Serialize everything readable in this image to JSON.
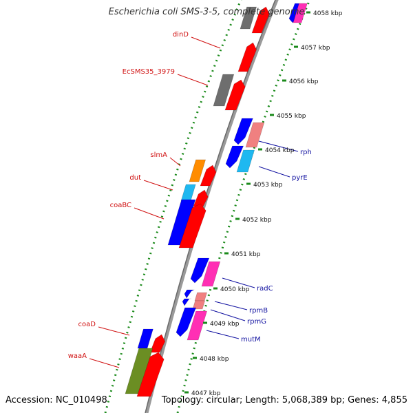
{
  "title": "Escherichia coli SMS-3-5, complete genome",
  "footer": {
    "accession": "Accession: NC_010498",
    "summary": "Topology: circular; Length: 5,068,389 bp; Genes: 4,855"
  },
  "colors": {
    "red": "#ff0000",
    "gray": "#6e6e6e",
    "blue": "#0000ff",
    "cyan": "#1fb8f0",
    "orange": "#ff8c00",
    "pink": "#ff2fb4",
    "salmon": "#f08080",
    "olive": "#6b8e23",
    "tick_green": "#1a8a1a",
    "forward_label": "#d01010",
    "reverse_label": "#1010a0"
  },
  "axis_ticks": [
    {
      "label": "4058 kbp",
      "kbp": 4058
    },
    {
      "label": "4057 kbp",
      "kbp": 4057
    },
    {
      "label": "4056 kbp",
      "kbp": 4056
    },
    {
      "label": "4055 kbp",
      "kbp": 4055
    },
    {
      "label": "4054 kbp",
      "kbp": 4054
    },
    {
      "label": "4053 kbp",
      "kbp": 4053
    },
    {
      "label": "4052 kbp",
      "kbp": 4052
    },
    {
      "label": "4051 kbp",
      "kbp": 4051
    },
    {
      "label": "4050 kbp",
      "kbp": 4050
    },
    {
      "label": "4049 kbp",
      "kbp": 4049
    },
    {
      "label": "4048 kbp",
      "kbp": 4048
    },
    {
      "label": "4047 kbp",
      "kbp": 4047
    }
  ],
  "forward_labels": [
    {
      "name": "dinD"
    },
    {
      "name": "EcSMS35_3979"
    },
    {
      "name": "slmA"
    },
    {
      "name": "dut"
    },
    {
      "name": "coaBC"
    },
    {
      "name": "coaD"
    },
    {
      "name": "waaA"
    }
  ],
  "reverse_labels": [
    {
      "name": "rph"
    },
    {
      "name": "pyrE"
    },
    {
      "name": "radC"
    },
    {
      "name": "rpmB"
    },
    {
      "name": "rpmG"
    },
    {
      "name": "mutM"
    }
  ]
}
